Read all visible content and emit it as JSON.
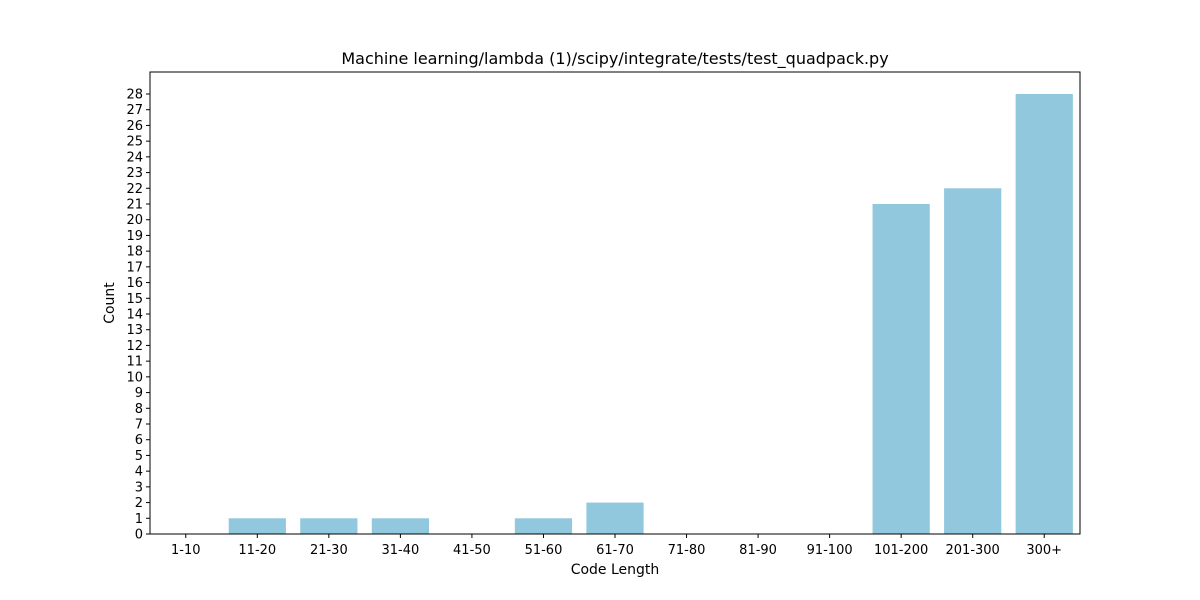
{
  "chart_data": {
    "type": "bar",
    "title": "Machine learning/lambda (1)/scipy/integrate/tests/test_quadpack.py",
    "xlabel": "Code Length",
    "ylabel": "Count",
    "categories": [
      "1-10",
      "11-20",
      "21-30",
      "31-40",
      "41-50",
      "51-60",
      "61-70",
      "71-80",
      "81-90",
      "91-100",
      "101-200",
      "201-300",
      "300+"
    ],
    "values": [
      0,
      1,
      1,
      1,
      0,
      1,
      2,
      0,
      0,
      0,
      21,
      22,
      28
    ],
    "ylim": [
      0,
      29.4
    ],
    "yticks": [
      0,
      1,
      2,
      3,
      4,
      5,
      6,
      7,
      8,
      9,
      10,
      11,
      12,
      13,
      14,
      15,
      16,
      17,
      18,
      19,
      20,
      21,
      22,
      23,
      24,
      25,
      26,
      27,
      28
    ],
    "bar_color": "#92c8de",
    "grid": false,
    "legend": "none"
  }
}
